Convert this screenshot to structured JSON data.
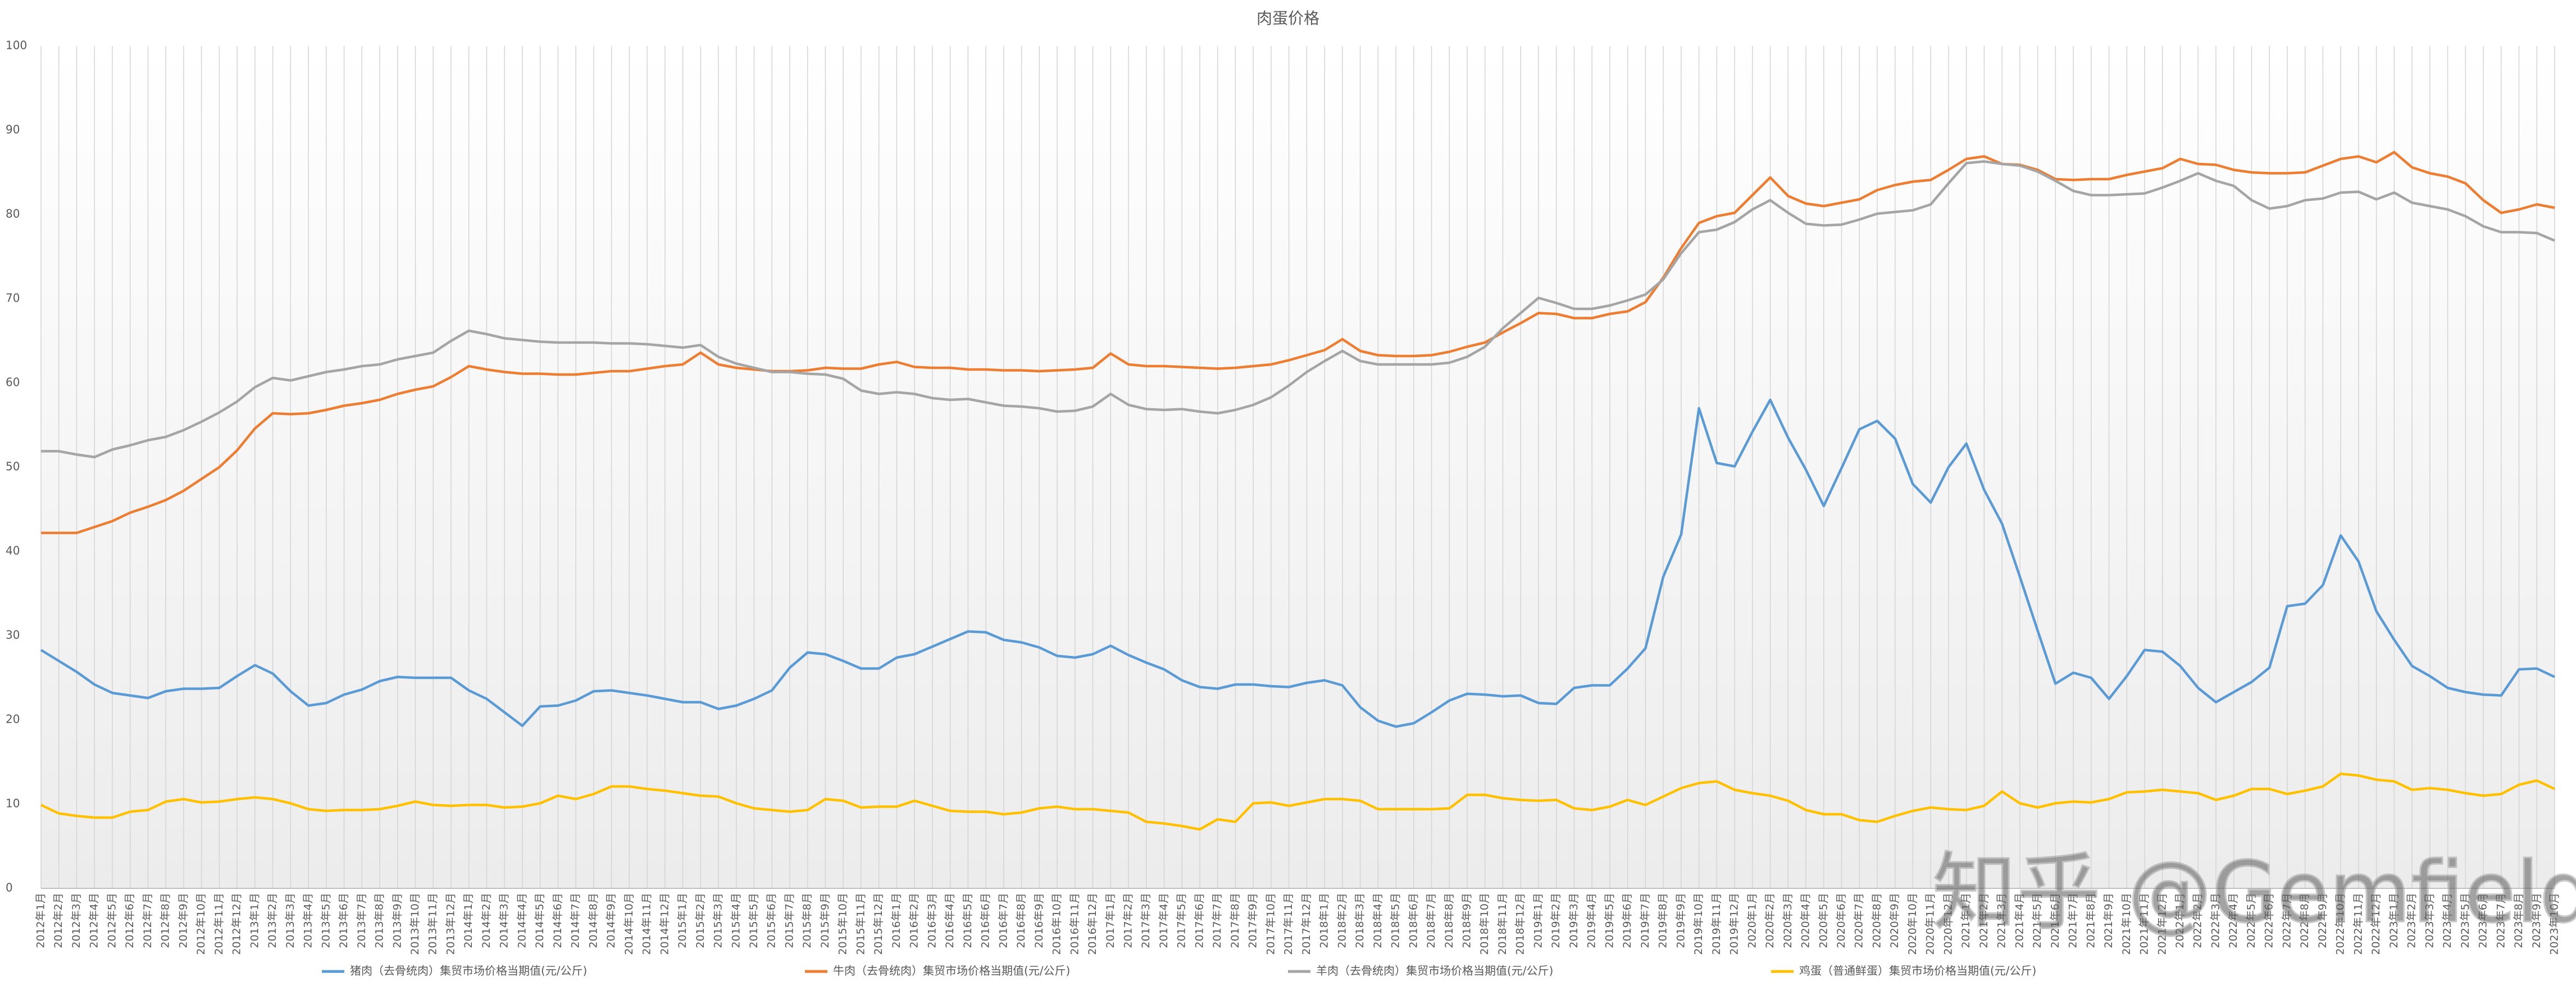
{
  "chart_data": {
    "type": "line",
    "title": "肉蛋价格",
    "watermark": "知乎 @Gemfield",
    "categories": [
      "2012年1月",
      "2012年2月",
      "2012年3月",
      "2012年4月",
      "2012年5月",
      "2012年6月",
      "2012年7月",
      "2012年8月",
      "2012年9月",
      "2012年10月",
      "2012年11月",
      "2012年12月",
      "2013年1月",
      "2013年2月",
      "2013年3月",
      "2013年4月",
      "2013年5月",
      "2013年6月",
      "2013年7月",
      "2013年8月",
      "2013年9月",
      "2013年10月",
      "2013年11月",
      "2013年12月",
      "2014年1月",
      "2014年2月",
      "2014年3月",
      "2014年4月",
      "2014年5月",
      "2014年6月",
      "2014年7月",
      "2014年8月",
      "2014年9月",
      "2014年10月",
      "2014年11月",
      "2014年12月",
      "2015年1月",
      "2015年2月",
      "2015年3月",
      "2015年4月",
      "2015年5月",
      "2015年6月",
      "2015年7月",
      "2015年8月",
      "2015年9月",
      "2015年10月",
      "2015年11月",
      "2015年12月",
      "2016年1月",
      "2016年2月",
      "2016年3月",
      "2016年4月",
      "2016年5月",
      "2016年6月",
      "2016年7月",
      "2016年8月",
      "2016年9月",
      "2016年10月",
      "2016年11月",
      "2016年12月",
      "2017年1月",
      "2017年2月",
      "2017年3月",
      "2017年4月",
      "2017年5月",
      "2017年6月",
      "2017年7月",
      "2017年8月",
      "2017年9月",
      "2017年10月",
      "2017年11月",
      "2017年12月",
      "2018年1月",
      "2018年2月",
      "2018年3月",
      "2018年4月",
      "2018年5月",
      "2018年6月",
      "2018年7月",
      "2018年8月",
      "2018年9月",
      "2018年10月",
      "2018年11月",
      "2018年12月",
      "2019年1月",
      "2019年2月",
      "2019年3月",
      "2019年4月",
      "2019年5月",
      "2019年6月",
      "2019年7月",
      "2019年8月",
      "2019年9月",
      "2019年10月",
      "2019年11月",
      "2019年12月",
      "2020年1月",
      "2020年2月",
      "2020年3月",
      "2020年4月",
      "2020年5月",
      "2020年6月",
      "2020年7月",
      "2020年8月",
      "2020年9月",
      "2020年10月",
      "2020年11月",
      "2020年12月",
      "2021年1月",
      "2021年2月",
      "2021年3月",
      "2021年4月",
      "2021年5月",
      "2021年6月",
      "2021年7月",
      "2021年8月",
      "2021年9月",
      "2021年10月",
      "2021年11月",
      "2021年12月",
      "2022年1月",
      "2022年2月",
      "2022年3月",
      "2022年4月",
      "2022年5月",
      "2022年6月",
      "2022年7月",
      "2022年8月",
      "2022年9月",
      "2022年10月",
      "2022年11月",
      "2022年12月",
      "2023年1月",
      "2023年2月",
      "2023年3月",
      "2023年4月",
      "2023年5月",
      "2023年6月",
      "2023年7月",
      "2023年8月",
      "2023年9月",
      "2023年10月"
    ],
    "series": [
      {
        "name": "猪肉（去骨统肉）集贸市场价格当期值(元/公斤)",
        "color": "#5b9bd5",
        "values": [
          28.3,
          27.0,
          25.7,
          24.2,
          23.2,
          22.9,
          22.6,
          23.4,
          23.7,
          23.7,
          23.8,
          25.2,
          26.5,
          25.5,
          23.4,
          21.7,
          22.0,
          23.0,
          23.6,
          24.6,
          25.1,
          25.0,
          25.0,
          25.0,
          23.5,
          22.5,
          20.9,
          19.3,
          21.6,
          21.7,
          22.3,
          23.4,
          23.5,
          23.2,
          22.9,
          22.5,
          22.1,
          22.1,
          21.3,
          21.7,
          22.5,
          23.5,
          26.2,
          28.0,
          27.8,
          27.0,
          26.1,
          26.1,
          27.4,
          27.8,
          28.7,
          29.6,
          30.5,
          30.4,
          29.5,
          29.2,
          28.6,
          27.6,
          27.4,
          27.8,
          28.8,
          27.7,
          26.8,
          26.0,
          24.7,
          23.9,
          23.7,
          24.2,
          24.2,
          24.0,
          23.9,
          24.4,
          24.7,
          24.1,
          21.5,
          19.9,
          19.2,
          19.6,
          20.9,
          22.3,
          23.1,
          23.0,
          22.8,
          22.9,
          22.0,
          21.9,
          23.8,
          24.1,
          24.1,
          26.1,
          28.5,
          37.0,
          42.0,
          57.0,
          50.5,
          50.1,
          54.2,
          58.0,
          53.5,
          49.7,
          45.4,
          49.9,
          54.5,
          55.5,
          53.4,
          48.0,
          45.8,
          50.0,
          52.8,
          47.3,
          43.3,
          37.0,
          30.6,
          24.3,
          25.6,
          25.0,
          22.5,
          25.2,
          28.3,
          28.1,
          26.4,
          23.8,
          22.1,
          23.3,
          24.5,
          26.2,
          33.5,
          33.8,
          36.0,
          41.9,
          38.8,
          32.9,
          29.5,
          26.4,
          25.2,
          23.8,
          23.3,
          23.0,
          22.9,
          26.0,
          26.1,
          25.1
        ]
      },
      {
        "name": "牛肉（去骨统肉）集贸市场价格当期值(元/公斤)",
        "color": "#ed7d31",
        "values": [
          42.2,
          42.2,
          42.2,
          42.9,
          43.6,
          44.6,
          45.3,
          46.1,
          47.2,
          48.6,
          50.0,
          52.0,
          54.6,
          56.4,
          56.3,
          56.4,
          56.8,
          57.3,
          57.6,
          58.0,
          58.7,
          59.2,
          59.6,
          60.7,
          62.0,
          61.6,
          61.3,
          61.1,
          61.1,
          61.0,
          61.0,
          61.2,
          61.4,
          61.4,
          61.7,
          62.0,
          62.2,
          63.6,
          62.2,
          61.8,
          61.6,
          61.4,
          61.4,
          61.5,
          61.8,
          61.7,
          61.7,
          62.2,
          62.5,
          61.9,
          61.8,
          61.8,
          61.6,
          61.6,
          61.5,
          61.5,
          61.4,
          61.5,
          61.6,
          61.8,
          63.5,
          62.2,
          62.0,
          62.0,
          61.9,
          61.8,
          61.7,
          61.8,
          62.0,
          62.2,
          62.7,
          63.3,
          63.9,
          65.2,
          63.8,
          63.3,
          63.2,
          63.2,
          63.3,
          63.7,
          64.3,
          64.8,
          66.0,
          67.1,
          68.3,
          68.2,
          67.7,
          67.7,
          68.2,
          68.5,
          69.6,
          72.5,
          76.0,
          79.0,
          79.8,
          80.2,
          82.3,
          84.4,
          82.2,
          81.3,
          81.0,
          81.4,
          81.8,
          82.9,
          83.5,
          83.9,
          84.1,
          85.3,
          86.6,
          86.9,
          86.0,
          85.9,
          85.3,
          84.2,
          84.1,
          84.2,
          84.2,
          84.7,
          85.1,
          85.5,
          86.6,
          86.0,
          85.9,
          85.3,
          85.0,
          84.9,
          84.9,
          85.0,
          85.8,
          86.6,
          86.9,
          86.2,
          87.4,
          85.6,
          84.9,
          84.5,
          83.7,
          81.7,
          80.2,
          80.6,
          81.2,
          80.8
        ]
      },
      {
        "name": "羊肉（去骨统肉）集贸市场价格当期值(元/公斤)",
        "color": "#a5a5a5",
        "values": [
          51.9,
          51.9,
          51.5,
          51.2,
          52.1,
          52.6,
          53.2,
          53.6,
          54.4,
          55.4,
          56.5,
          57.8,
          59.5,
          60.6,
          60.3,
          60.8,
          61.3,
          61.6,
          62.0,
          62.2,
          62.8,
          63.2,
          63.6,
          65.0,
          66.2,
          65.8,
          65.3,
          65.1,
          64.9,
          64.8,
          64.8,
          64.8,
          64.7,
          64.7,
          64.6,
          64.4,
          64.2,
          64.5,
          63.1,
          62.3,
          61.8,
          61.3,
          61.3,
          61.1,
          61.0,
          60.5,
          59.1,
          58.7,
          58.9,
          58.7,
          58.2,
          58.0,
          58.1,
          57.7,
          57.3,
          57.2,
          57.0,
          56.6,
          56.7,
          57.2,
          58.7,
          57.4,
          56.9,
          56.8,
          56.9,
          56.6,
          56.4,
          56.8,
          57.4,
          58.3,
          59.7,
          61.3,
          62.6,
          63.8,
          62.6,
          62.2,
          62.2,
          62.2,
          62.2,
          62.4,
          63.1,
          64.3,
          66.5,
          68.3,
          70.1,
          69.5,
          68.8,
          68.8,
          69.2,
          69.8,
          70.5,
          72.3,
          75.4,
          77.9,
          78.2,
          79.1,
          80.6,
          81.7,
          80.2,
          78.9,
          78.7,
          78.8,
          79.4,
          80.1,
          80.3,
          80.5,
          81.2,
          83.7,
          86.1,
          86.3,
          86.0,
          85.8,
          85.1,
          84.0,
          82.8,
          82.3,
          82.3,
          82.4,
          82.5,
          83.2,
          84.0,
          84.9,
          84.0,
          83.4,
          81.7,
          80.7,
          81.0,
          81.7,
          81.9,
          82.6,
          82.7,
          81.8,
          82.6,
          81.4,
          81.0,
          80.6,
          79.8,
          78.6,
          77.9,
          77.9,
          77.8,
          76.9
        ]
      },
      {
        "name": "鸡蛋（普通鲜蛋）集贸市场价格当期值(元/公斤)",
        "color": "#ffc000",
        "values": [
          9.9,
          8.9,
          8.6,
          8.4,
          8.4,
          9.1,
          9.3,
          10.3,
          10.6,
          10.2,
          10.3,
          10.6,
          10.8,
          10.6,
          10.1,
          9.4,
          9.2,
          9.3,
          9.3,
          9.4,
          9.8,
          10.3,
          9.9,
          9.8,
          9.9,
          9.9,
          9.6,
          9.7,
          10.1,
          11.0,
          10.6,
          11.2,
          12.1,
          12.1,
          11.8,
          11.6,
          11.3,
          11.0,
          10.9,
          10.1,
          9.5,
          9.3,
          9.1,
          9.3,
          10.6,
          10.4,
          9.6,
          9.7,
          9.7,
          10.4,
          9.8,
          9.2,
          9.1,
          9.1,
          8.8,
          9.0,
          9.5,
          9.7,
          9.4,
          9.4,
          9.2,
          9.0,
          7.9,
          7.7,
          7.4,
          7.0,
          8.2,
          7.9,
          10.1,
          10.2,
          9.8,
          10.2,
          10.6,
          10.6,
          10.4,
          9.4,
          9.4,
          9.4,
          9.4,
          9.5,
          11.1,
          11.1,
          10.7,
          10.5,
          10.4,
          10.5,
          9.5,
          9.3,
          9.7,
          10.5,
          9.9,
          10.9,
          11.9,
          12.5,
          12.7,
          11.7,
          11.3,
          11.0,
          10.4,
          9.3,
          8.8,
          8.8,
          8.1,
          7.9,
          8.6,
          9.2,
          9.6,
          9.4,
          9.3,
          9.8,
          11.5,
          10.1,
          9.6,
          10.1,
          10.3,
          10.2,
          10.6,
          11.4,
          11.5,
          11.7,
          11.5,
          11.3,
          10.5,
          11.0,
          11.8,
          11.8,
          11.2,
          11.6,
          12.1,
          13.6,
          13.4,
          12.9,
          12.7,
          11.7,
          11.9,
          11.7,
          11.3,
          11.0,
          11.2,
          12.3,
          12.8,
          11.8
        ]
      }
    ],
    "ylim": [
      0,
      100
    ],
    "yticks": [
      0,
      10,
      20,
      30,
      40,
      50,
      60,
      70,
      80,
      90,
      100
    ],
    "grid": "vertical",
    "legend": "bottom"
  }
}
